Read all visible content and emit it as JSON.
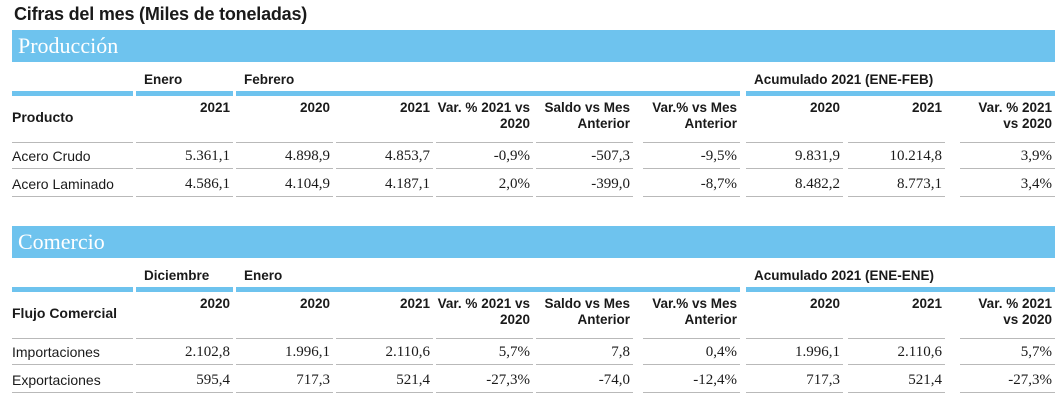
{
  "title": "Cifras del mes (Miles de toneladas)",
  "sections": [
    {
      "name": "Producción",
      "group_labels": [
        "Enero",
        "Febrero",
        "Acumulado 2021 (ENE-FEB)"
      ],
      "first_header": "Producto",
      "headers": [
        "2021",
        "2020",
        "2021",
        "Var. % 2021 vs 2020",
        "Saldo vs Mes Anterior",
        "Var.% vs Mes Anterior",
        "2020",
        "2021",
        "Var. % 2021 vs 2020"
      ],
      "rows": [
        {
          "label": "Acero Crudo",
          "values": [
            "5.361,1",
            "4.898,9",
            "4.853,7",
            "-0,9%",
            "-507,3",
            "-9,5%",
            "9.831,9",
            "10.214,8",
            "3,9%"
          ]
        },
        {
          "label": "Acero Laminado",
          "values": [
            "4.586,1",
            "4.104,9",
            "4.187,1",
            "2,0%",
            "-399,0",
            "-8,7%",
            "8.482,2",
            "8.773,1",
            "3,4%"
          ]
        }
      ]
    },
    {
      "name": "Comercio",
      "group_labels": [
        "Diciembre",
        "Enero",
        "Acumulado 2021 (ENE-ENE)"
      ],
      "first_header": "Flujo Comercial",
      "headers": [
        "2020",
        "2020",
        "2021",
        "Var. % 2021 vs 2020",
        "Saldo vs Mes Anterior",
        "Var.% vs Mes Anterior",
        "2020",
        "2021",
        "Var. % 2021 vs 2020"
      ],
      "rows": [
        {
          "label": "Importaciones",
          "values": [
            "2.102,8",
            "1.996,1",
            "2.110,6",
            "5,7%",
            "7,8",
            "0,4%",
            "1.996,1",
            "2.110,6",
            "5,7%"
          ]
        },
        {
          "label": "Exportaciones",
          "values": [
            "595,4",
            "717,3",
            "521,4",
            "-27,3%",
            "-74,0",
            "-12,4%",
            "717,3",
            "521,4",
            "-27,3%"
          ]
        }
      ]
    }
  ],
  "colors": {
    "accent": "#6ec3ee",
    "text": "#1a1a1a"
  }
}
